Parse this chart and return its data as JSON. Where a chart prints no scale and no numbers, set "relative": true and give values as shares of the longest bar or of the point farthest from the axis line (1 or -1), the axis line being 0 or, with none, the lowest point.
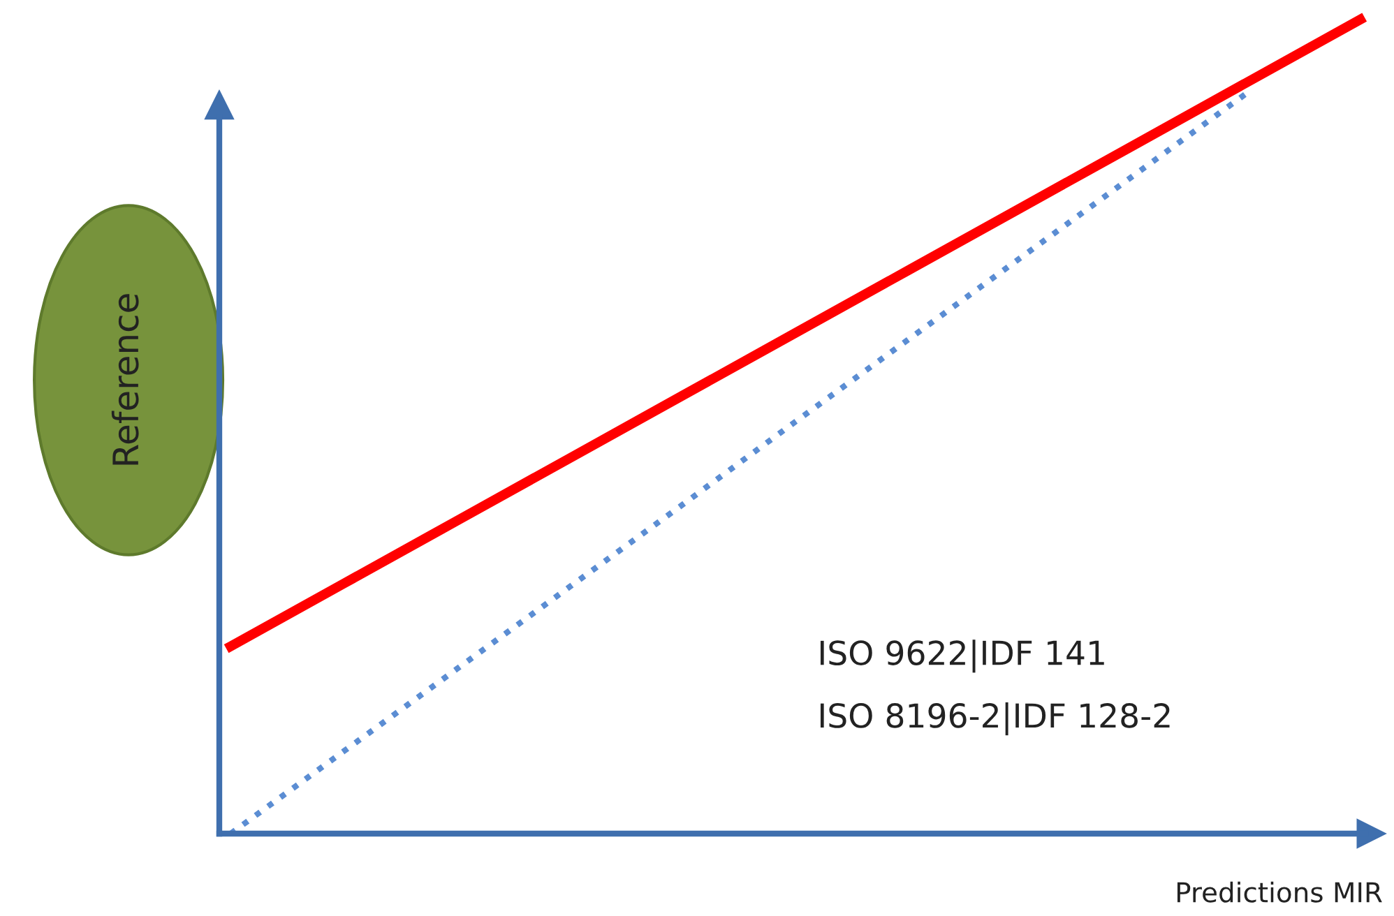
{
  "chart_data": {
    "type": "line",
    "relative": true,
    "xlabel": "Predictions MIR",
    "ylabel": "Reference",
    "categories": [
      null,
      null,
      null,
      null,
      null,
      null,
      null,
      null,
      null,
      null,
      null
    ],
    "tick_labels": false,
    "series": [
      {
        "color": "#ff0000",
        "line_style": "solid",
        "values": [
          0.23,
          0.307,
          0.384,
          0.461,
          0.538,
          0.615,
          0.692,
          0.769,
          0.846,
          0.923,
          1
        ]
      },
      {
        "color": "#5b8dd3",
        "line_style": "dotted",
        "values": [
          0,
          0.101,
          0.202,
          0.303,
          0.404,
          0.506,
          0.607,
          0.708,
          0.809,
          0.91,
          null
        ]
      }
    ],
    "annotations": [
      "ISO 9622|IDF 141",
      "ISO 8196-2|IDF 128-2"
    ]
  }
}
